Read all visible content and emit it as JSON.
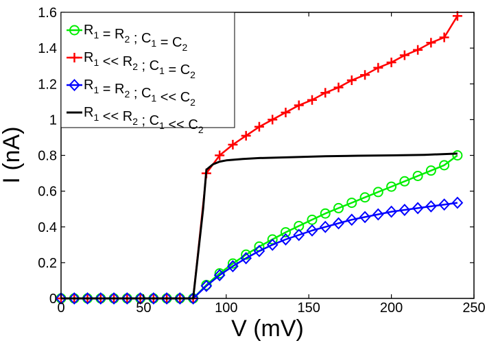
{
  "chart_data": {
    "type": "line",
    "title": "",
    "xlabel": "V (mV)",
    "ylabel": "I (nA)",
    "xlim": [
      0,
      250
    ],
    "ylim": [
      0,
      1.6
    ],
    "xticks": [
      0,
      50,
      100,
      150,
      200,
      250
    ],
    "yticks": [
      0,
      0.2,
      0.4,
      0.6,
      0.8,
      1,
      1.2,
      1.4,
      1.6
    ],
    "xtick_labels": [
      "0",
      "50",
      "100",
      "150",
      "200",
      "250"
    ],
    "ytick_labels": [
      "0",
      "0.2",
      "0.4",
      "0.6",
      "0.8",
      "1",
      "1.2",
      "1.4",
      "1.6"
    ],
    "grid": false,
    "legend_position": "top-left",
    "series": [
      {
        "name": "R1 = R2 ; C1 = C2",
        "color": "#00ee00",
        "marker": "circle",
        "x": [
          0,
          8,
          16,
          24,
          32,
          40,
          48,
          56,
          64,
          72,
          80,
          88,
          96,
          104,
          112,
          120,
          128,
          136,
          144,
          152,
          160,
          168,
          176,
          184,
          192,
          200,
          208,
          216,
          224,
          232,
          240
        ],
        "y": [
          0,
          0,
          0,
          0,
          0,
          0,
          0,
          0,
          0,
          0,
          0,
          0.075,
          0.14,
          0.195,
          0.245,
          0.29,
          0.33,
          0.37,
          0.405,
          0.44,
          0.475,
          0.505,
          0.535,
          0.565,
          0.595,
          0.625,
          0.655,
          0.685,
          0.715,
          0.745,
          0.8
        ]
      },
      {
        "name": "R1 << R2 ; C1 = C2",
        "color": "#ff0000",
        "marker": "plus",
        "x": [
          0,
          8,
          16,
          24,
          32,
          40,
          48,
          56,
          64,
          72,
          80,
          88,
          96,
          104,
          112,
          120,
          128,
          136,
          144,
          152,
          160,
          168,
          176,
          184,
          192,
          200,
          208,
          216,
          224,
          232,
          240
        ],
        "y": [
          0,
          0,
          0,
          0,
          0,
          0,
          0,
          0,
          0,
          0,
          0,
          0.7,
          0.8,
          0.86,
          0.91,
          0.96,
          1.0,
          1.04,
          1.08,
          1.11,
          1.15,
          1.18,
          1.22,
          1.25,
          1.29,
          1.32,
          1.36,
          1.39,
          1.43,
          1.46,
          1.58
        ]
      },
      {
        "name": "R1 = R2 ; C1 << C2",
        "color": "#0000ff",
        "marker": "diamond",
        "x": [
          0,
          8,
          16,
          24,
          32,
          40,
          48,
          56,
          64,
          72,
          80,
          88,
          96,
          104,
          112,
          120,
          128,
          136,
          144,
          152,
          160,
          168,
          176,
          184,
          192,
          200,
          208,
          216,
          224,
          232,
          240
        ],
        "y": [
          0,
          0,
          0,
          0,
          0,
          0,
          0,
          0,
          0,
          0,
          0,
          0.07,
          0.13,
          0.18,
          0.225,
          0.265,
          0.3,
          0.33,
          0.355,
          0.38,
          0.4,
          0.42,
          0.44,
          0.455,
          0.47,
          0.485,
          0.495,
          0.505,
          0.515,
          0.525,
          0.535
        ]
      },
      {
        "name": "R1 << R2 ; C1 << C2",
        "color": "#000000",
        "marker": "none",
        "x": [
          0,
          80,
          86,
          88,
          92,
          96,
          100,
          110,
          120,
          140,
          160,
          180,
          200,
          220,
          240
        ],
        "y": [
          0,
          0,
          0.5,
          0.72,
          0.75,
          0.765,
          0.772,
          0.78,
          0.785,
          0.79,
          0.795,
          0.798,
          0.8,
          0.803,
          0.81
        ]
      }
    ],
    "legend_entries": [
      {
        "r_a": "R",
        "s_a": "1",
        "r_op": " = ",
        "r_b": "R",
        "s_b": "2",
        "c_sep": " ; ",
        "c_a": "C",
        "s_c": "1",
        "c_op": " = ",
        "c_b": "C",
        "s_d": "2"
      },
      {
        "r_a": "R",
        "s_a": "1",
        "r_op": " << ",
        "r_b": "R",
        "s_b": "2",
        "c_sep": " ; ",
        "c_a": "C",
        "s_c": "1",
        "c_op": " = ",
        "c_b": "C",
        "s_d": "2"
      },
      {
        "r_a": "R",
        "s_a": "1",
        "r_op": " = ",
        "r_b": "R",
        "s_b": "2",
        "c_sep": " ; ",
        "c_a": "C",
        "s_c": "1",
        "c_op": " << ",
        "c_b": "C",
        "s_d": "2"
      },
      {
        "r_a": "R",
        "s_a": "1",
        "r_op": " << ",
        "r_b": "R",
        "s_b": "2",
        "c_sep": " ; ",
        "c_a": "C",
        "s_c": "1",
        "c_op": " << ",
        "c_b": "C",
        "s_d": "2"
      }
    ]
  }
}
